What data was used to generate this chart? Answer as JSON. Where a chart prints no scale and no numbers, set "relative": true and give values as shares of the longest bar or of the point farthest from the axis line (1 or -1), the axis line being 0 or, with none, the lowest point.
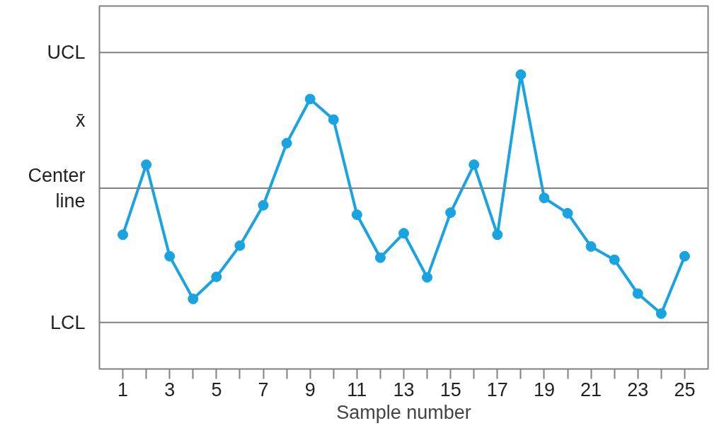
{
  "chart_data": {
    "type": "line",
    "xlabel": "Sample number",
    "relative": true,
    "x": [
      1,
      2,
      3,
      4,
      5,
      6,
      7,
      8,
      9,
      10,
      11,
      12,
      13,
      14,
      15,
      16,
      17,
      18,
      19,
      20,
      21,
      22,
      23,
      24,
      25
    ],
    "series": [
      {
        "color": "#19a3e0",
        "values": [
          0.456,
          0.694,
          0.383,
          0.238,
          0.313,
          0.419,
          0.556,
          0.767,
          0.917,
          0.847,
          0.524,
          0.378,
          0.461,
          0.311,
          0.531,
          0.694,
          0.456,
          1,
          0.581,
          0.529,
          0.416,
          0.371,
          0.256,
          0.188,
          0.383
        ]
      }
    ],
    "xlim": [
      0,
      26
    ],
    "xticks": [
      1,
      {
        "value": 2,
        "label": null
      },
      3,
      {
        "value": 4,
        "label": null
      },
      5,
      {
        "value": 6,
        "label": null
      },
      7,
      {
        "value": 8,
        "label": null
      },
      9,
      {
        "value": 10,
        "label": null
      },
      11,
      {
        "value": 12,
        "label": null
      },
      13,
      {
        "value": 14,
        "label": null
      },
      15,
      {
        "value": 16,
        "label": null
      },
      17,
      {
        "value": 18,
        "label": null
      },
      19,
      {
        "value": 20,
        "label": null
      },
      21,
      {
        "value": 22,
        "label": null
      },
      23,
      {
        "value": 24,
        "label": null
      },
      25
    ],
    "ref_lines": [
      {
        "axis": "y",
        "value": 1.075,
        "label": "UCL",
        "color": "#808080"
      },
      {
        "axis": "y",
        "value": 0.614,
        "label": "Center\nline",
        "color": "#808080"
      },
      {
        "axis": "y",
        "value": 0.158,
        "label": "LCL",
        "color": "#808080"
      }
    ],
    "annotations": [
      "x̄"
    ],
    "grid": false,
    "marker": "circle",
    "line_style": "solid"
  }
}
